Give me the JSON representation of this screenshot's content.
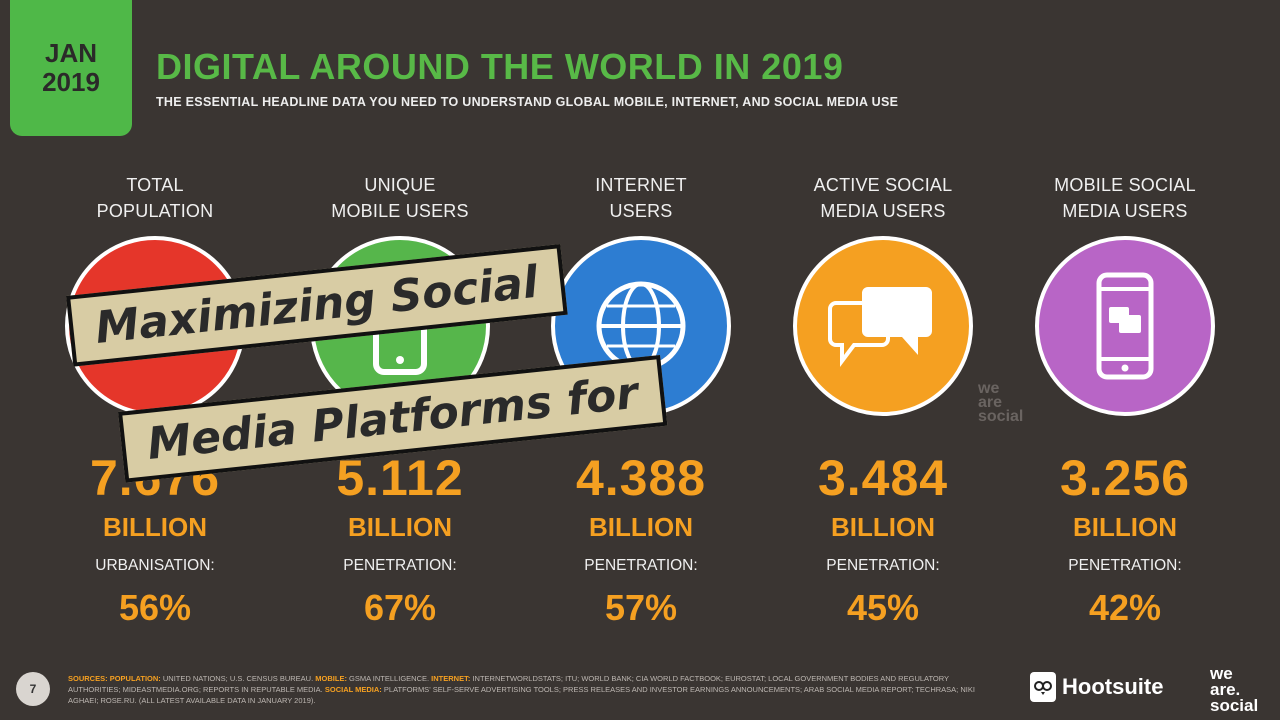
{
  "badge": {
    "month": "JAN",
    "year": "2019"
  },
  "title": "DIGITAL AROUND THE WORLD IN 2019",
  "subtitle": "THE ESSENTIAL HEADLINE DATA YOU NEED TO UNDERSTAND GLOBAL MOBILE, INTERNET, AND SOCIAL MEDIA USE",
  "columns": [
    {
      "label1": "TOTAL",
      "label2": "POPULATION",
      "value": "7.676",
      "unit": "BILLION",
      "sublabel": "URBANISATION:",
      "pct": "56%",
      "color": "#e5362a",
      "icon": "people-icon"
    },
    {
      "label1": "UNIQUE",
      "label2": "MOBILE USERS",
      "value": "5.112",
      "unit": "BILLION",
      "sublabel": "PENETRATION:",
      "pct": "67%",
      "color": "#56b64b",
      "icon": "mobile-phone-icon"
    },
    {
      "label1": "INTERNET",
      "label2": "USERS",
      "value": "4.388",
      "unit": "BILLION",
      "sublabel": "PENETRATION:",
      "pct": "57%",
      "color": "#2d7dd2",
      "icon": "globe-icon"
    },
    {
      "label1": "ACTIVE SOCIAL",
      "label2": "MEDIA USERS",
      "value": "3.484",
      "unit": "BILLION",
      "sublabel": "PENETRATION:",
      "pct": "45%",
      "color": "#f5a021",
      "icon": "chat-bubbles-icon"
    },
    {
      "label1": "MOBILE SOCIAL",
      "label2": "MEDIA USERS",
      "value": "3.256",
      "unit": "BILLION",
      "sublabel": "PENETRATION:",
      "pct": "42%",
      "color": "#b865c6",
      "icon": "mobile-chat-icon"
    }
  ],
  "watermark": {
    "line1": "we",
    "line2": "are",
    "line3": "social"
  },
  "banner": {
    "line1": "Maximizing Social",
    "line2": "Media Platforms for"
  },
  "footer": {
    "page": "7",
    "sources_label": "SOURCES:",
    "pop_label": "POPULATION:",
    "pop_text": "UNITED NATIONS; U.S. CENSUS BUREAU.",
    "mobile_label": "MOBILE:",
    "mobile_text": "GSMA INTELLIGENCE.",
    "internet_label": "INTERNET:",
    "internet_text": "INTERNETWORLDSTATS; ITU; WORLD BANK; CIA WORLD FACTBOOK; EUROSTAT; LOCAL GOVERNMENT BODIES AND REGULATORY AUTHORITIES; MIDEASTMEDIA.ORG; REPORTS IN REPUTABLE MEDIA.",
    "social_label": "SOCIAL MEDIA:",
    "social_text": "PLATFORMS' SELF-SERVE ADVERTISING TOOLS; PRESS RELEASES AND INVESTOR EARNINGS ANNOUNCEMENTS; ARAB SOCIAL MEDIA REPORT; TECHRASA; NIKI AGHAEI; ROSE.RU. (ALL LATEST AVAILABLE DATA IN JANUARY 2019).",
    "hootsuite": "Hootsuite",
    "was1": "we",
    "was2": "are.",
    "was3": "social"
  },
  "colors": {
    "accent_green": "#58b947",
    "value_orange": "#f5a021",
    "background": "#3a3532"
  }
}
